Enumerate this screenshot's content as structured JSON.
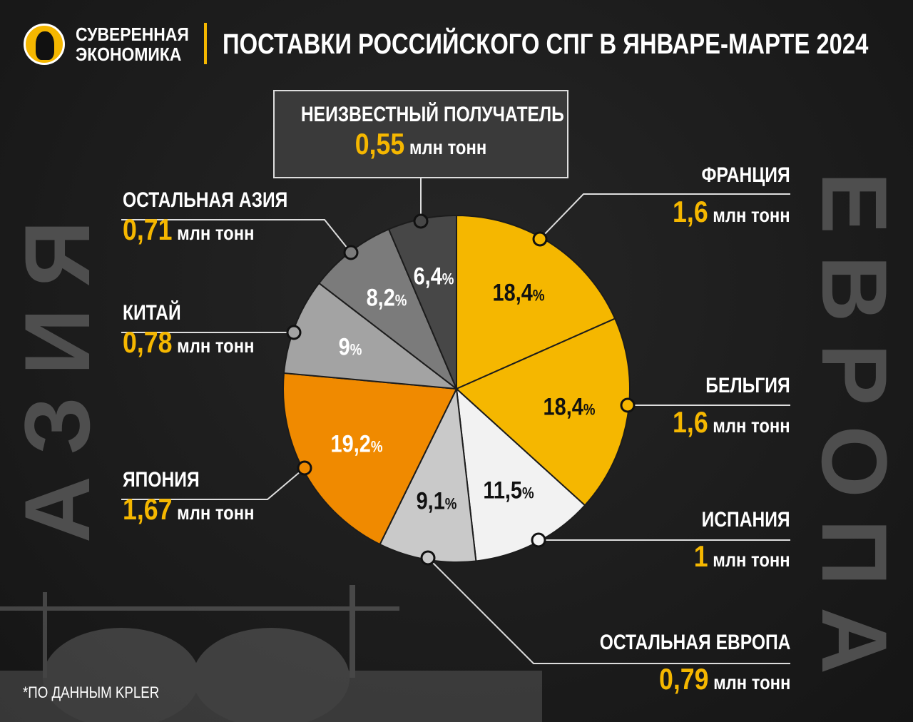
{
  "header": {
    "brand_line1": "СУВЕРЕННАЯ",
    "brand_line2": "ЭКОНОМИКА",
    "title": "ПОСТАВКИ РОССИЙСКОГО СПГ В ЯНВАРЕ-МАРТЕ 2024"
  },
  "background": {
    "left_word": "АЗИЯ",
    "right_word": "ЕВРОПА"
  },
  "unit": "млн тонн",
  "source": "*ПО ДАННЫМ KPLER",
  "colors": {
    "accent": "#f5b700"
  },
  "chart_data": {
    "type": "pie",
    "title": "ПОСТАВКИ РОССИЙСКОГО СПГ В ЯНВАРЕ-МАРТЕ 2024",
    "value_unit": "млн тонн",
    "slices": [
      {
        "name": "ФРАНЦИЯ",
        "value_label": "1,6",
        "value": 1.6,
        "pct_label": "18,4",
        "pct": 18.4,
        "color": "#f5b700",
        "text": "#111"
      },
      {
        "name": "БЕЛЬГИЯ",
        "value_label": "1,6",
        "value": 1.6,
        "pct_label": "18,4",
        "pct": 18.4,
        "color": "#f5b700",
        "text": "#111"
      },
      {
        "name": "ИСПАНИЯ",
        "value_label": "1",
        "value": 1.0,
        "pct_label": "11,5",
        "pct": 11.5,
        "color": "#f2f2f2",
        "text": "#111"
      },
      {
        "name": "ОСТАЛЬНАЯ ЕВРОПА",
        "value_label": "0,79",
        "value": 0.79,
        "pct_label": "9,1",
        "pct": 9.1,
        "color": "#c9c9c9",
        "text": "#111"
      },
      {
        "name": "ЯПОНИЯ",
        "value_label": "1,67",
        "value": 1.67,
        "pct_label": "19,2",
        "pct": 19.2,
        "color": "#f08a00",
        "text": "#fff"
      },
      {
        "name": "КИТАЙ",
        "value_label": "0,78",
        "value": 0.78,
        "pct_label": "9",
        "pct": 9.0,
        "color": "#a3a3a3",
        "text": "#fff"
      },
      {
        "name": "ОСТАЛЬНАЯ АЗИЯ",
        "value_label": "0,71",
        "value": 0.71,
        "pct_label": "8,2",
        "pct": 8.2,
        "color": "#7b7b7b",
        "text": "#fff"
      },
      {
        "name": "НЕИЗВЕСТНЫЙ ПОЛУЧАТЕЛЬ",
        "value_label": "0,55",
        "value": 0.55,
        "pct_label": "6,4",
        "pct": 6.4,
        "color": "#474747",
        "text": "#fff"
      }
    ]
  }
}
